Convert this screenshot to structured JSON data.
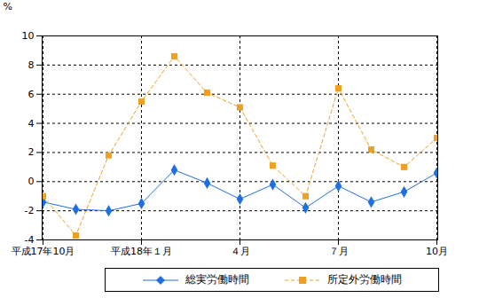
{
  "chart_data": {
    "type": "line",
    "y_label": "%",
    "categories": [
      "平成17年10月",
      null,
      null,
      "平成18年１月",
      null,
      null,
      "４月",
      null,
      null,
      "７月",
      null,
      null,
      "10月"
    ],
    "series": [
      {
        "name": "総実労働時間",
        "color": "#1f6fe0",
        "marker": "diamond",
        "line_style": "solid",
        "values": [
          -1.4,
          -1.9,
          -2.0,
          -1.5,
          0.8,
          -0.1,
          -1.2,
          -0.2,
          -1.8,
          -0.3,
          -1.4,
          -0.7,
          0.6
        ]
      },
      {
        "name": "所定外労働時間",
        "color": "#f0a020",
        "marker": "square",
        "line_style": "dashed",
        "values": [
          -1.0,
          -3.7,
          1.8,
          5.5,
          8.6,
          6.1,
          5.1,
          1.1,
          -1.0,
          6.4,
          2.2,
          1.0,
          3.0
        ]
      }
    ],
    "ylim": [
      -4,
      10
    ],
    "yticks": [
      -4,
      -2,
      0,
      2,
      4,
      6,
      8,
      10
    ],
    "grid": true,
    "legend": "bottom"
  }
}
